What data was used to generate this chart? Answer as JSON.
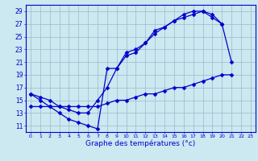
{
  "xlabel": "Graphe des températures (°c)",
  "bg_color": "#cce8f0",
  "line_color": "#0000cc",
  "grid_color": "#99bbcc",
  "ylim": [
    10,
    30
  ],
  "xlim": [
    -0.5,
    23.5
  ],
  "yticks": [
    11,
    13,
    15,
    17,
    19,
    21,
    23,
    25,
    27,
    29
  ],
  "xticks": [
    0,
    1,
    2,
    3,
    4,
    5,
    6,
    7,
    8,
    9,
    10,
    11,
    12,
    13,
    14,
    15,
    16,
    17,
    18,
    19,
    20,
    21,
    22,
    23
  ],
  "temp_actual": [
    16,
    15,
    14,
    13,
    12,
    11.5,
    11,
    10.5,
    20,
    20,
    22.5,
    23,
    24,
    26,
    26.5,
    27.5,
    28,
    28.5,
    29,
    28.5,
    27,
    21,
    null,
    null
  ],
  "temp_max": [
    16,
    15.5,
    15,
    14,
    13.5,
    13,
    13,
    15,
    17,
    20,
    22,
    22.5,
    24,
    25.5,
    26.5,
    27.5,
    28.5,
    29,
    29,
    28,
    27,
    null,
    null,
    null
  ],
  "temp_min": [
    14,
    14,
    14,
    14,
    14,
    14,
    14,
    14,
    14.5,
    15,
    15,
    15.5,
    16,
    16,
    16.5,
    17,
    17,
    17.5,
    18,
    18.5,
    19,
    19,
    null,
    null
  ]
}
